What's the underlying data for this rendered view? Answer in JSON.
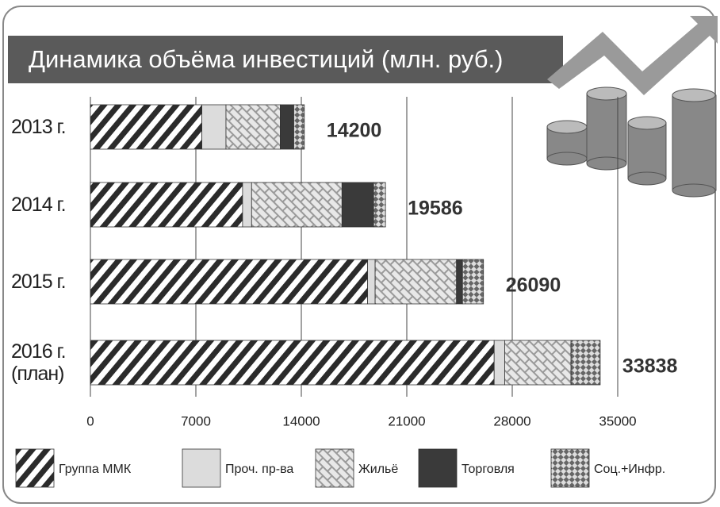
{
  "chart_data": {
    "type": "stacked-barh",
    "title": "Динамика объёма инвестиций (млн. руб.)",
    "categories": [
      "2013 г.",
      "2014 г.",
      "2015 г.",
      "2016 г.\n(план)"
    ],
    "series": [
      {
        "name": "Группа ММК",
        "color": "#2b2b2b",
        "pattern": "hatch",
        "values": [
          7400,
          10100,
          18400,
          26800
        ]
      },
      {
        "name": "Проч. пр-ва",
        "color": "#dcdcdc",
        "pattern": "solid",
        "values": [
          1600,
          600,
          500,
          700
        ]
      },
      {
        "name": "Жильё",
        "color": "#8a8a8a",
        "pattern": "brick",
        "values": [
          3600,
          6000,
          5400,
          4400
        ]
      },
      {
        "name": "Торговля",
        "color": "#3a3a3a",
        "pattern": "solid",
        "values": [
          900,
          2100,
          400,
          0
        ]
      },
      {
        "name": "Соц.+Инфр.",
        "color": "#777777",
        "pattern": "check",
        "values": [
          700,
          786,
          1390,
          1938
        ]
      }
    ],
    "totals": [
      14200,
      19586,
      26090,
      33838
    ],
    "xlim": [
      0,
      35000
    ],
    "xticks": [
      0,
      7000,
      14000,
      21000,
      28000,
      35000
    ],
    "grid": true
  }
}
